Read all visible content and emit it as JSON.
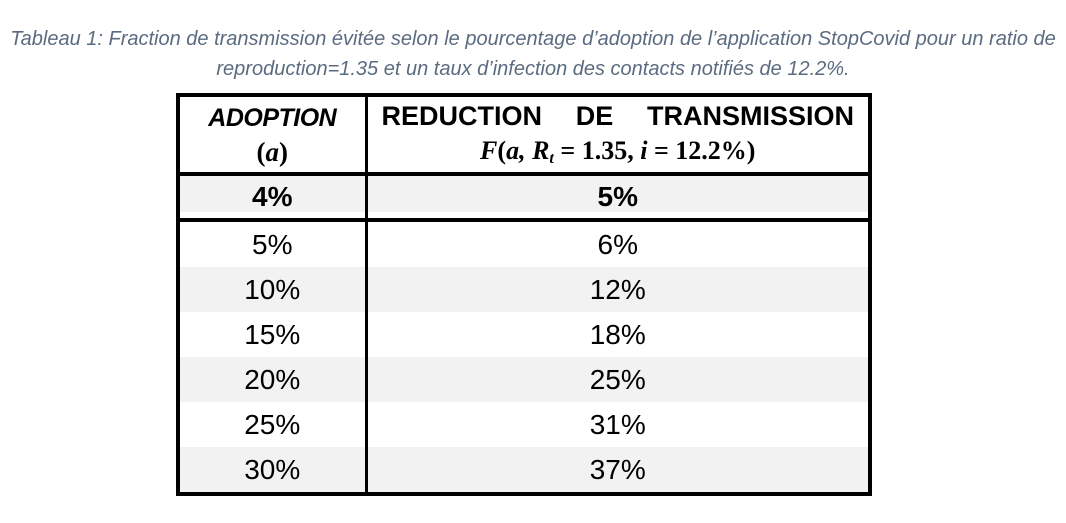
{
  "colors": {
    "caption_text": "#5b6b80",
    "row_stripe": "#f2f2f2",
    "table_border": "#000000",
    "background": "#ffffff"
  },
  "caption": {
    "line1": "Tableau 1: Fraction de transmission évitée selon le pourcentage d’adoption de l’application StopCovid pour un ratio de",
    "line2": "reproduction=1.35 et un taux d’infection des contacts notifiés de 12.2%."
  },
  "table": {
    "header": {
      "col1_title": "ADOPTION",
      "col1_open": "(",
      "col1_var": "a",
      "col1_close": ")",
      "col2_words": [
        "REDUCTION",
        "DE",
        "TRANSMISSION"
      ],
      "formula": {
        "f": "F",
        "lp": "(",
        "a": "a, ",
        "r": "R",
        "rsub": "t",
        "mid": " = 1.35, ",
        "i": "i",
        "end": " = 12.2%)"
      }
    },
    "rows": [
      {
        "adoption": "4%",
        "reduction": "5%"
      },
      {
        "adoption": "5%",
        "reduction": "6%"
      },
      {
        "adoption": "10%",
        "reduction": "12%"
      },
      {
        "adoption": "15%",
        "reduction": "18%"
      },
      {
        "adoption": "20%",
        "reduction": "25%"
      },
      {
        "adoption": "25%",
        "reduction": "31%"
      },
      {
        "adoption": "30%",
        "reduction": "37%"
      }
    ]
  }
}
